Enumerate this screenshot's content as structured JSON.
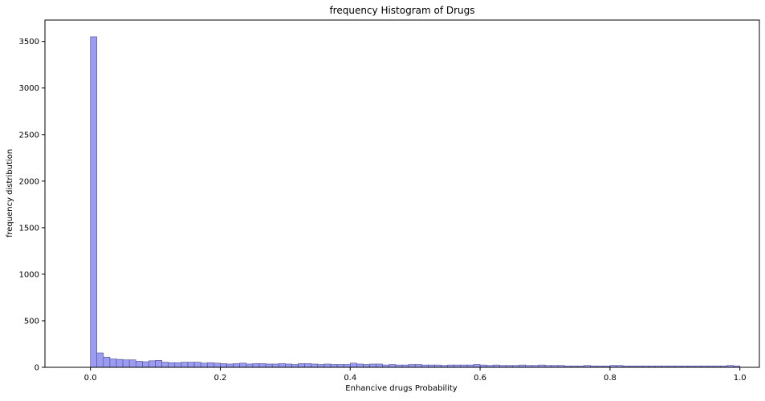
{
  "chart_data": {
    "type": "bar",
    "title": "frequency Histogram of Drugs",
    "xlabel": "Enhancive drugs Probability",
    "ylabel": "frequency distribution",
    "xlim": [
      -0.07,
      1.03
    ],
    "ylim": [
      0,
      3730
    ],
    "xticks": [
      0.0,
      0.2,
      0.4,
      0.6,
      0.8,
      1.0
    ],
    "xtick_labels": [
      "0.0",
      "0.2",
      "0.4",
      "0.6",
      "0.8",
      "1.0"
    ],
    "yticks": [
      0,
      500,
      1000,
      1500,
      2000,
      2500,
      3000,
      3500
    ],
    "ytick_labels": [
      "0",
      "500",
      "1000",
      "1500",
      "2000",
      "2500",
      "3000",
      "3500"
    ],
    "grid": false,
    "legend": "none",
    "bar_color": "#9b9bf2",
    "edge_color": "#4c4c8c",
    "bin_start": 0.0,
    "bin_end": 1.0,
    "counts": [
      3550,
      155,
      110,
      90,
      85,
      80,
      80,
      65,
      60,
      70,
      75,
      55,
      50,
      50,
      55,
      55,
      55,
      45,
      50,
      45,
      40,
      35,
      40,
      45,
      35,
      40,
      40,
      35,
      35,
      40,
      35,
      30,
      40,
      40,
      35,
      30,
      35,
      30,
      30,
      30,
      45,
      35,
      30,
      35,
      35,
      25,
      30,
      25,
      25,
      30,
      30,
      25,
      25,
      25,
      20,
      25,
      25,
      25,
      25,
      30,
      25,
      20,
      25,
      20,
      20,
      20,
      25,
      20,
      20,
      25,
      20,
      20,
      20,
      15,
      15,
      15,
      20,
      15,
      15,
      15,
      20,
      20,
      15,
      15,
      15,
      15,
      15,
      15,
      15,
      15,
      15,
      15,
      15,
      15,
      15,
      15,
      15,
      15,
      20,
      15
    ]
  }
}
